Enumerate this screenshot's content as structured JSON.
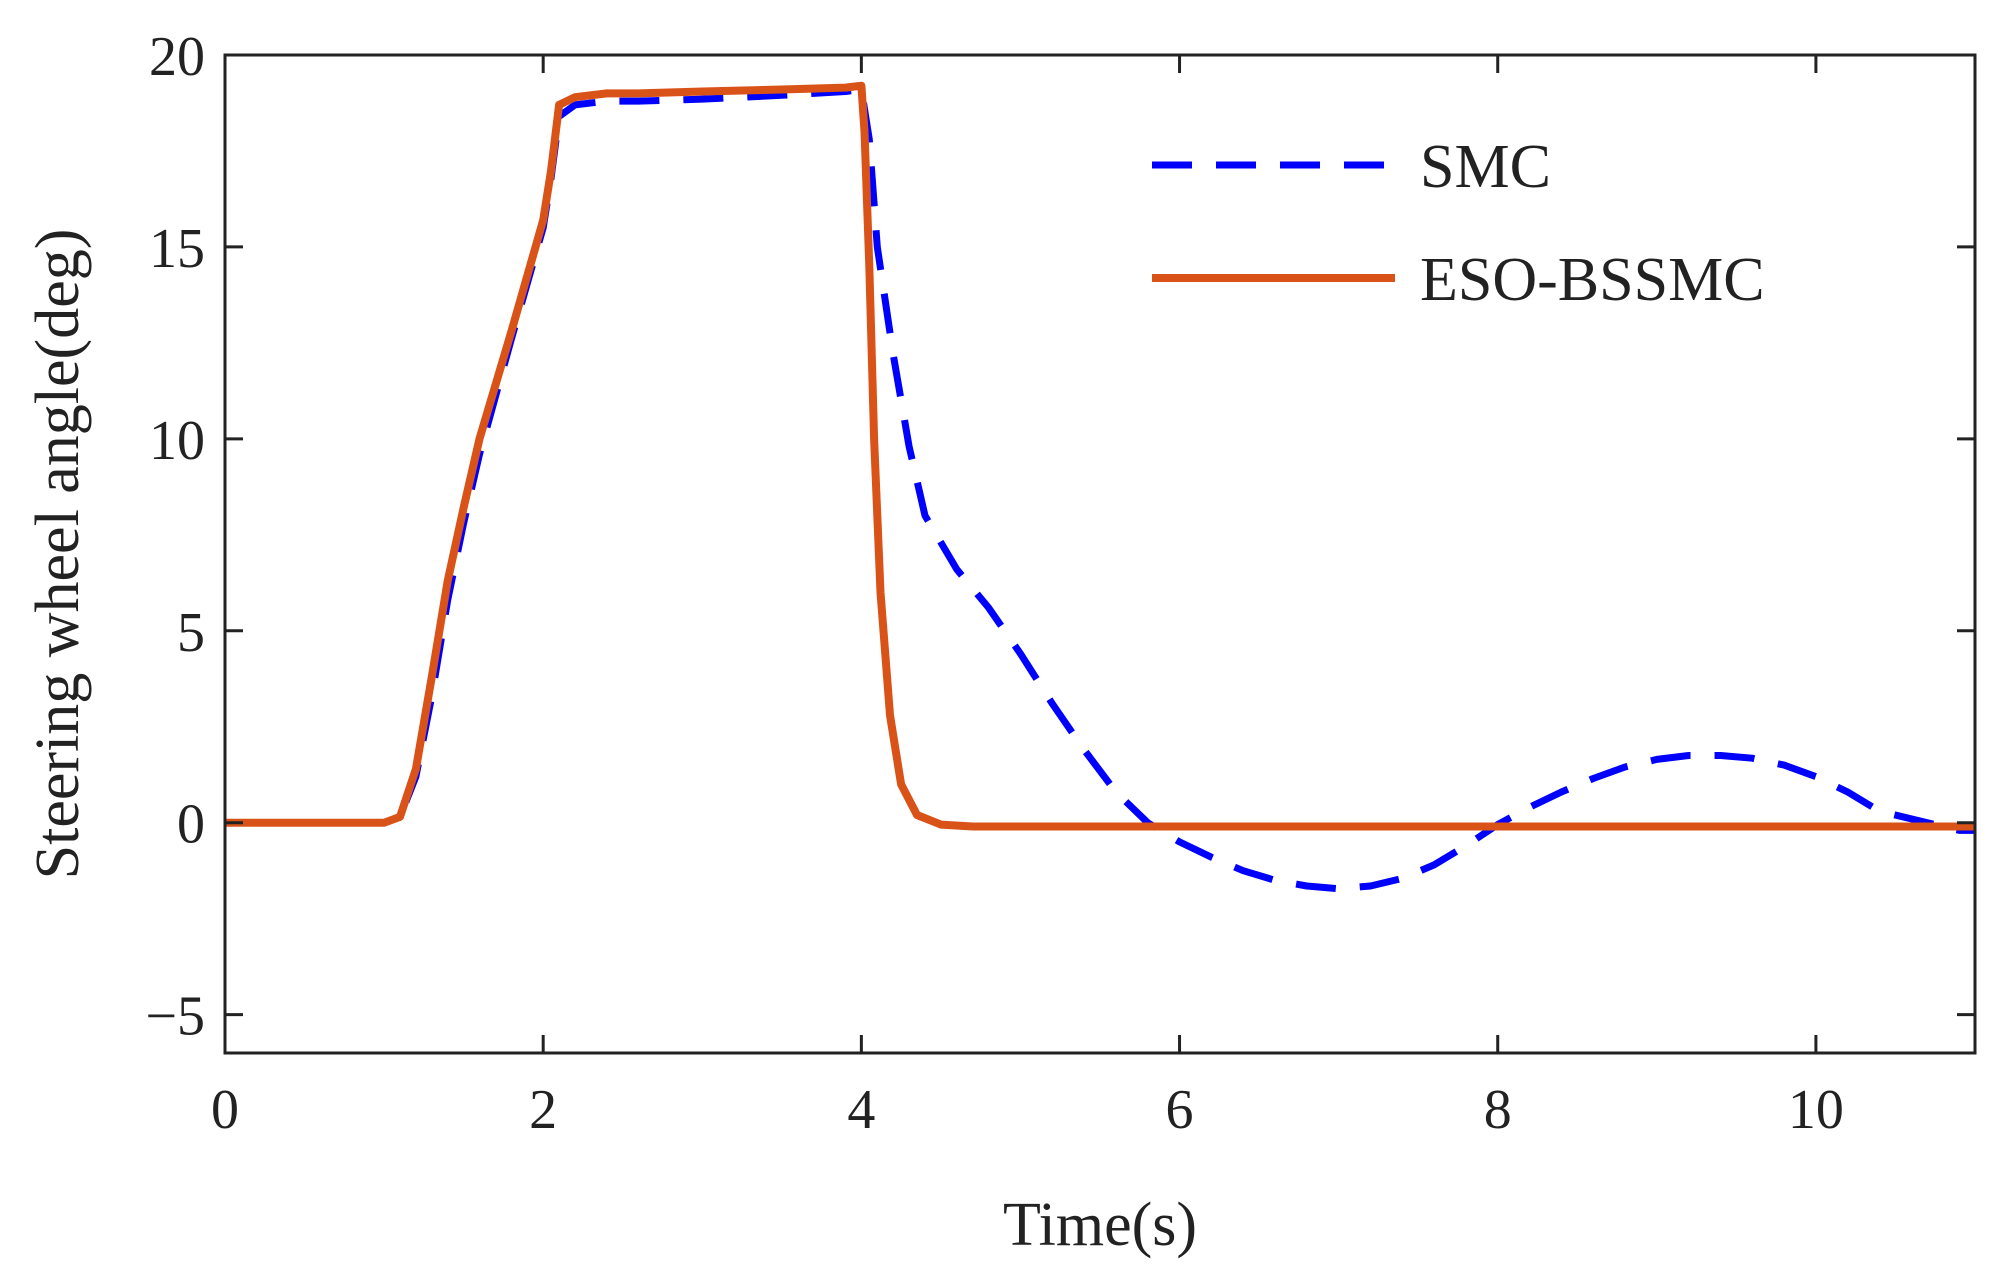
{
  "chart_data": {
    "type": "line",
    "title": "",
    "xlabel": "Time(s)",
    "ylabel": "Steering wheel angle(deg)",
    "xlim": [
      0,
      11
    ],
    "ylim": [
      -6,
      20
    ],
    "xticks": [
      0,
      2,
      4,
      6,
      8,
      10
    ],
    "yticks": [
      -5,
      0,
      5,
      10,
      15,
      20
    ],
    "xtick_labels": [
      "0",
      "2",
      "4",
      "6",
      "8",
      "10"
    ],
    "ytick_labels": [
      "−5",
      "0",
      "5",
      "10",
      "15",
      "20"
    ],
    "grid": false,
    "legend_position": "top-right",
    "series": [
      {
        "name": "SMC",
        "color": "#0000ff",
        "style": "dashed",
        "x": [
          0,
          1.0,
          1.1,
          1.2,
          1.3,
          1.4,
          1.5,
          1.6,
          1.8,
          2.0,
          2.05,
          2.1,
          2.2,
          2.4,
          2.6,
          3.0,
          3.5,
          3.9,
          4.0,
          4.05,
          4.1,
          4.2,
          4.3,
          4.4,
          4.6,
          4.8,
          5.0,
          5.2,
          5.4,
          5.6,
          5.8,
          6.0,
          6.2,
          6.4,
          6.6,
          6.8,
          7.0,
          7.2,
          7.4,
          7.6,
          7.8,
          8.0,
          8.2,
          8.4,
          8.6,
          8.8,
          9.0,
          9.2,
          9.4,
          9.6,
          9.8,
          10.0,
          10.2,
          10.4,
          10.6,
          10.8,
          10.9,
          11.0
        ],
        "y": [
          0,
          0,
          0.15,
          1.2,
          3.3,
          5.8,
          7.8,
          9.6,
          12.6,
          15.5,
          16.8,
          18.4,
          18.7,
          18.8,
          18.8,
          18.85,
          18.95,
          19.05,
          19.1,
          17.8,
          15.0,
          12.2,
          9.8,
          8.0,
          6.6,
          5.6,
          4.4,
          3.1,
          1.9,
          0.8,
          0.0,
          -0.5,
          -0.9,
          -1.25,
          -1.5,
          -1.65,
          -1.72,
          -1.65,
          -1.45,
          -1.1,
          -0.6,
          -0.05,
          0.4,
          0.8,
          1.15,
          1.45,
          1.65,
          1.75,
          1.75,
          1.68,
          1.5,
          1.2,
          0.8,
          0.3,
          0.1,
          -0.1,
          -0.2,
          -0.2
        ]
      },
      {
        "name": "ESO-BSSMC",
        "color": "#d95319",
        "style": "solid",
        "x": [
          0,
          1.0,
          1.1,
          1.2,
          1.3,
          1.4,
          1.5,
          1.6,
          1.8,
          2.0,
          2.05,
          2.1,
          2.2,
          2.4,
          2.6,
          3.0,
          3.5,
          3.9,
          4.0,
          4.02,
          4.05,
          4.08,
          4.12,
          4.18,
          4.25,
          4.35,
          4.5,
          4.7,
          5.0,
          6.0,
          7.0,
          8.0,
          9.0,
          10.0,
          11.0
        ],
        "y": [
          0,
          0,
          0.15,
          1.4,
          3.8,
          6.3,
          8.2,
          10.0,
          12.8,
          15.7,
          17.0,
          18.7,
          18.9,
          19.0,
          19.0,
          19.05,
          19.1,
          19.15,
          19.2,
          18.0,
          14.5,
          10.0,
          6.0,
          2.8,
          1.0,
          0.2,
          -0.05,
          -0.1,
          -0.1,
          -0.1,
          -0.1,
          -0.1,
          -0.1,
          -0.1,
          -0.1
        ]
      }
    ]
  }
}
